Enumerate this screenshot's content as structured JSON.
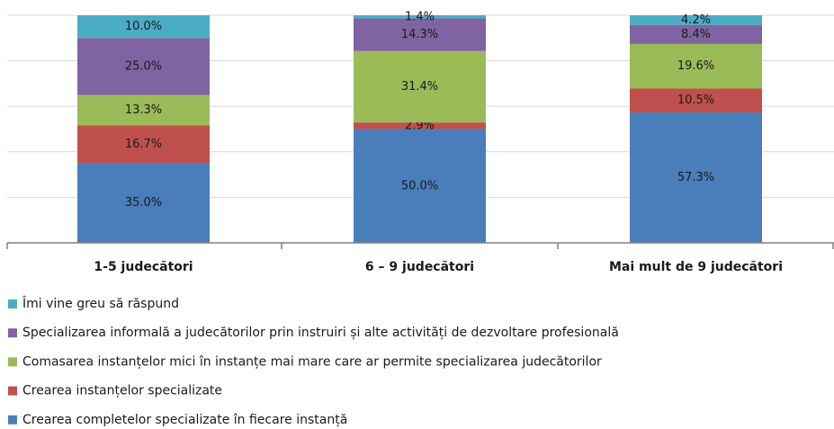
{
  "chart_data": {
    "type": "stacked_bar",
    "categories": [
      "1-5 judecători",
      "6 – 9 judecători",
      "Mai mult de 9 judecători"
    ],
    "series": [
      {
        "name": "Crearea completelor specializate în fiecare instanță",
        "color": "#4a7ebb",
        "values": [
          35.0,
          50.0,
          57.3
        ],
        "value_labels": [
          "35.0%",
          "50.0%",
          "57.3%"
        ]
      },
      {
        "name": "Crearea instanțelor specializate",
        "color": "#c0504d",
        "values": [
          16.7,
          2.9,
          10.5
        ],
        "value_labels": [
          "16.7%",
          "2.9%",
          "10.5%"
        ]
      },
      {
        "name": "Comasarea instanțelor mici în instanțe mai mare care ar permite specializarea judecătorilor",
        "color": "#9bbb59",
        "values": [
          13.3,
          31.4,
          19.6
        ],
        "value_labels": [
          "13.3%",
          "31.4%",
          "19.6%"
        ]
      },
      {
        "name": "Specializarea informală a judecătorilor prin instruiri și alte activități de dezvoltare profesională",
        "color": "#8064a2",
        "values": [
          25.0,
          14.3,
          8.4
        ],
        "value_labels": [
          "25.0%",
          "14.3%",
          "8.4%"
        ]
      },
      {
        "name": "Îmi vine greu să răspund",
        "color": "#4bacc6",
        "values": [
          10.0,
          1.4,
          4.2
        ],
        "value_labels": [
          "10.0%",
          "1.4%",
          "4.2%"
        ]
      }
    ],
    "ylim": [
      0,
      100
    ],
    "yticks": [
      0,
      20,
      40,
      60,
      80,
      100
    ],
    "grid": true
  }
}
